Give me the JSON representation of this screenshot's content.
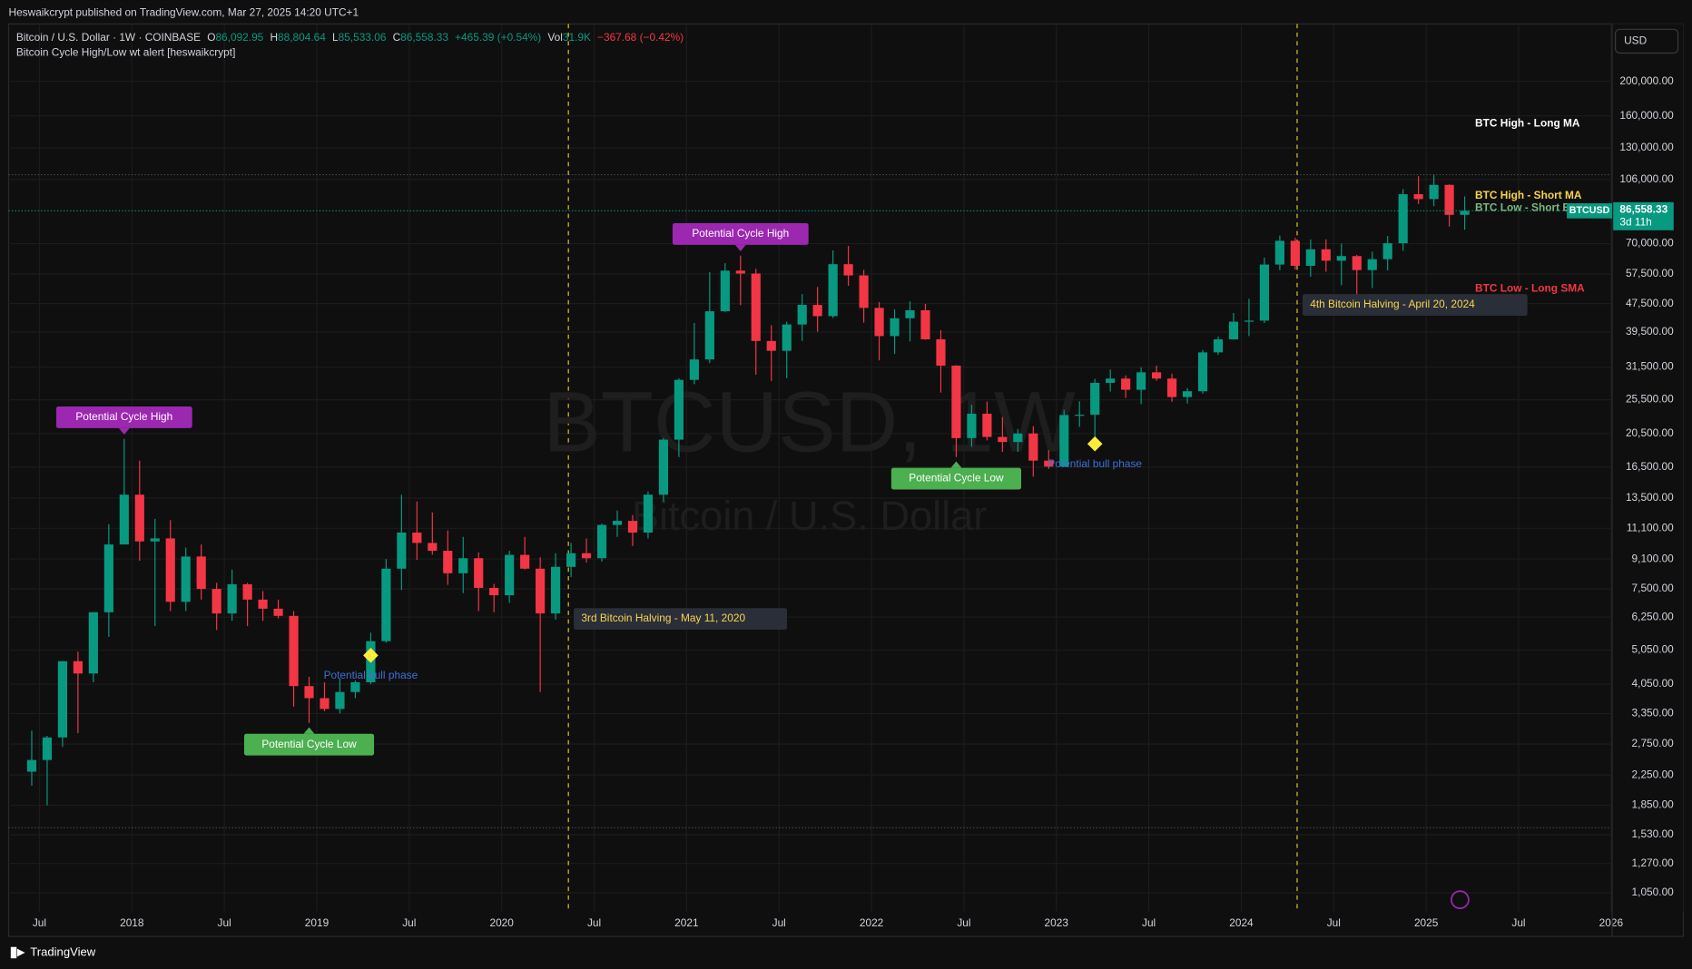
{
  "header": {
    "publisher": "Heswaikcrypt published on TradingView.com, Mar 27, 2025 14:20 UTC+1",
    "symbol": "Bitcoin / U.S. Dollar · 1W · COINBASE",
    "ohlc_labels": [
      "O",
      "H",
      "L",
      "C"
    ],
    "ohlc_values": [
      "86,092.95",
      "88,804.64",
      "85,533.06",
      "86,558.33"
    ],
    "change": "+465.39 (+0.54%)",
    "volume_label": "Vol",
    "volume": "31.9K",
    "volume_change": "−367.68 (−0.42%)",
    "indicator": "Bitcoin Cycle High/Low wt alert [heswaikcrypt]",
    "currency": "USD",
    "countdown": "3d 11h",
    "footer": "TradingView"
  },
  "chart_data": {
    "type": "candlestick",
    "watermark": "BTCUSD, 1W",
    "watermark_sub": "Bitcoin / U.S. Dollar",
    "log_scale": true,
    "grid": true,
    "up_color": "#089981",
    "down_color": "#f23645",
    "series": [
      {
        "name": "BTCUSD",
        "x": [
          "2017-06",
          "2017-07",
          "2017-08",
          "2017-09",
          "2017-10",
          "2017-11",
          "2017-12",
          "2018-01",
          "2018-02",
          "2018-03",
          "2018-04",
          "2018-05",
          "2018-06",
          "2018-07",
          "2018-08",
          "2018-09",
          "2018-10",
          "2018-11",
          "2018-12",
          "2019-01",
          "2019-02",
          "2019-03",
          "2019-04",
          "2019-05",
          "2019-06",
          "2019-07",
          "2019-08",
          "2019-09",
          "2019-10",
          "2019-11",
          "2019-12",
          "2020-01",
          "2020-02",
          "2020-03",
          "2020-04",
          "2020-05",
          "2020-06",
          "2020-07",
          "2020-08",
          "2020-09",
          "2020-10",
          "2020-11",
          "2020-12",
          "2021-01",
          "2021-02",
          "2021-03",
          "2021-04",
          "2021-05",
          "2021-06",
          "2021-07",
          "2021-08",
          "2021-09",
          "2021-10",
          "2021-11",
          "2021-12",
          "2022-01",
          "2022-02",
          "2022-03",
          "2022-04",
          "2022-05",
          "2022-06",
          "2022-07",
          "2022-08",
          "2022-09",
          "2022-10",
          "2022-11",
          "2022-12",
          "2023-01",
          "2023-02",
          "2023-03",
          "2023-04",
          "2023-05",
          "2023-06",
          "2023-07",
          "2023-08",
          "2023-09",
          "2023-10",
          "2023-11",
          "2023-12",
          "2024-01",
          "2024-02",
          "2024-03",
          "2024-04",
          "2024-05",
          "2024-06",
          "2024-07",
          "2024-08",
          "2024-09",
          "2024-10",
          "2024-11",
          "2024-12",
          "2025-01",
          "2025-02",
          "2025-03"
        ],
        "open": [
          2300,
          2480,
          2870,
          4700,
          4340,
          6450,
          10000,
          13800,
          10200,
          10400,
          6900,
          9250,
          7500,
          6400,
          7730,
          7000,
          6600,
          6300,
          4000,
          3700,
          3450,
          3850,
          4100,
          5350,
          8550,
          10800,
          10100,
          9600,
          8300,
          9150,
          7550,
          7200,
          9350,
          8550,
          6400,
          8650,
          9450,
          9150,
          11350,
          11650,
          10800,
          13800,
          19700,
          29000,
          33100,
          45200,
          58800,
          57700,
          37300,
          35000,
          41500,
          47100,
          43800,
          61300,
          57000,
          46200,
          38500,
          43200,
          45500,
          37700,
          31800,
          19900,
          23300,
          20050,
          19400,
          20500,
          17200,
          16550,
          23100,
          23150,
          28450,
          29250,
          27200,
          30450,
          29250,
          25950,
          26950,
          34650,
          37700,
          42250,
          42550,
          61150,
          71300,
          60650,
          67500,
          62700,
          64600,
          59000,
          63300,
          70200,
          96400,
          93400,
          102400,
          84350
        ],
        "high": [
          3000,
          2900,
          4700,
          5000,
          6450,
          11400,
          19800,
          17200,
          11800,
          11700,
          9800,
          10000,
          7800,
          8500,
          7800,
          7400,
          7000,
          6500,
          4250,
          4100,
          4200,
          4150,
          5650,
          9100,
          13800,
          13200,
          12300,
          10950,
          10500,
          9500,
          7750,
          9600,
          10500,
          9200,
          9450,
          10100,
          10400,
          11450,
          12450,
          12100,
          14100,
          19900,
          29300,
          41900,
          58300,
          61700,
          64800,
          59500,
          41300,
          42300,
          50500,
          52900,
          67000,
          69000,
          59100,
          48000,
          45800,
          48200,
          47400,
          40000,
          31900,
          24700,
          25200,
          22800,
          21100,
          21500,
          18400,
          23900,
          25250,
          29200,
          31000,
          29850,
          31450,
          31800,
          30200,
          27500,
          35200,
          38400,
          44700,
          49000,
          64000,
          73800,
          72700,
          71950,
          72000,
          70000,
          65100,
          66500,
          73600,
          99650,
          108350,
          109350,
          102750,
          95000
        ],
        "low": [
          2100,
          1850,
          2700,
          2950,
          4100,
          5500,
          10000,
          9000,
          5900,
          6500,
          6500,
          7000,
          5750,
          6100,
          5900,
          6100,
          6200,
          3500,
          3150,
          3400,
          3350,
          3700,
          4050,
          5300,
          7450,
          9050,
          9350,
          7700,
          7300,
          6500,
          6450,
          6850,
          8500,
          3850,
          6150,
          8100,
          8900,
          8950,
          10500,
          9900,
          10400,
          13200,
          17600,
          28200,
          32300,
          45000,
          47000,
          30000,
          28800,
          29300,
          37300,
          39600,
          43300,
          53300,
          42000,
          32900,
          34300,
          37200,
          37600,
          26700,
          17600,
          18800,
          19600,
          18200,
          18200,
          15500,
          16300,
          16500,
          21400,
          19550,
          26900,
          25800,
          24800,
          28850,
          25150,
          24900,
          26550,
          34100,
          37600,
          38500,
          41900,
          59000,
          59200,
          56500,
          58400,
          53500,
          49000,
          52550,
          58900,
          66800,
          90500,
          89200,
          78200,
          76600
        ],
        "close": [
          2480,
          2870,
          4700,
          4340,
          6450,
          10000,
          13800,
          10200,
          10400,
          6900,
          9250,
          7500,
          6400,
          7730,
          7000,
          6600,
          6300,
          4000,
          3700,
          3450,
          3850,
          4100,
          5350,
          8550,
          10800,
          10100,
          9600,
          8300,
          9150,
          7550,
          7200,
          9350,
          8550,
          6400,
          8650,
          9450,
          9150,
          11350,
          11650,
          10800,
          13800,
          19700,
          29000,
          33100,
          45200,
          58800,
          57700,
          37300,
          35000,
          41500,
          47100,
          43800,
          61300,
          57000,
          46200,
          38500,
          43200,
          45500,
          37700,
          31800,
          19900,
          23300,
          20050,
          19400,
          20500,
          17200,
          16550,
          23100,
          23150,
          28450,
          29250,
          27200,
          30450,
          29250,
          25950,
          26950,
          34650,
          37700,
          42250,
          42550,
          61150,
          71300,
          60650,
          67500,
          62700,
          64600,
          59000,
          63300,
          70200,
          96400,
          93400,
          102400,
          84350,
          86558.33
        ]
      }
    ],
    "last_price": {
      "value": 86558.33,
      "label": "86,558.33"
    },
    "hlines": [
      109350,
      1600
    ],
    "ylim": [
      930,
      290000
    ],
    "yticks": [
      {
        "value": 200000,
        "label": "200,000.00"
      },
      {
        "value": 160000,
        "label": "160,000.00"
      },
      {
        "value": 130000,
        "label": "130,000.00"
      },
      {
        "value": 106000,
        "label": "106,000.00"
      },
      {
        "value": 70000,
        "label": "70,000.00"
      },
      {
        "value": 57500,
        "label": "57,500.00"
      },
      {
        "value": 47500,
        "label": "47,500.00"
      },
      {
        "value": 39500,
        "label": "39,500.00"
      },
      {
        "value": 31500,
        "label": "31,500.00"
      },
      {
        "value": 25500,
        "label": "25,500.00"
      },
      {
        "value": 20500,
        "label": "20,500.00"
      },
      {
        "value": 16500,
        "label": "16,500.00"
      },
      {
        "value": 13500,
        "label": "13,500.00"
      },
      {
        "value": 11100,
        "label": "11,100.00"
      },
      {
        "value": 9100,
        "label": "9,100.00"
      },
      {
        "value": 7500,
        "label": "7,500.00"
      },
      {
        "value": 6250,
        "label": "6,250.00"
      },
      {
        "value": 5050,
        "label": "5,050.00"
      },
      {
        "value": 4050,
        "label": "4,050.00"
      },
      {
        "value": 3350,
        "label": "3,350.00"
      },
      {
        "value": 2750,
        "label": "2,750.00"
      },
      {
        "value": 2250,
        "label": "2,250.00"
      },
      {
        "value": 1850,
        "label": "1,850.00"
      },
      {
        "value": 1530,
        "label": "1,530.00"
      },
      {
        "value": 1270,
        "label": "1,270.00"
      },
      {
        "value": 1050,
        "label": "1,050.00"
      }
    ],
    "xlim": [
      "2017-05",
      "2026-01"
    ],
    "xticks": [
      {
        "value": "2017-07",
        "label": "Jul"
      },
      {
        "value": "2018-01",
        "label": "2018"
      },
      {
        "value": "2018-07",
        "label": "Jul"
      },
      {
        "value": "2019-01",
        "label": "2019"
      },
      {
        "value": "2019-07",
        "label": "Jul"
      },
      {
        "value": "2020-01",
        "label": "2020"
      },
      {
        "value": "2020-07",
        "label": "Jul"
      },
      {
        "value": "2021-01",
        "label": "2021"
      },
      {
        "value": "2021-07",
        "label": "Jul"
      },
      {
        "value": "2022-01",
        "label": "2022"
      },
      {
        "value": "2022-07",
        "label": "Jul"
      },
      {
        "value": "2023-01",
        "label": "2023"
      },
      {
        "value": "2023-07",
        "label": "Jul"
      },
      {
        "value": "2024-01",
        "label": "2024"
      },
      {
        "value": "2024-07",
        "label": "Jul"
      },
      {
        "value": "2025-01",
        "label": "2025"
      },
      {
        "value": "2025-07",
        "label": "Jul"
      },
      {
        "value": "2026-01",
        "label": "2026"
      }
    ],
    "annotations": [
      {
        "kind": "cycle-high",
        "text": "Potential Cycle High",
        "x": "2017-12",
        "y": 19800
      },
      {
        "kind": "cycle-high",
        "text": "Potential Cycle High",
        "x": "2021-04",
        "y": 64800
      },
      {
        "kind": "cycle-low",
        "text": "Potential Cycle Low",
        "x": "2018-12",
        "y": 3150
      },
      {
        "kind": "cycle-low",
        "text": "Potential Cycle Low",
        "x": "2022-06",
        "y": 17600
      },
      {
        "kind": "bull-phase",
        "text": "Potential bull phase",
        "x": "2019-04",
        "y": 4880
      },
      {
        "kind": "bull-phase",
        "text": "Potential bull phase",
        "x": "2023-03",
        "y": 19170
      },
      {
        "kind": "halving",
        "text": "3rd Bitcoin Halving - May 11, 2020",
        "x": "2020-05-11",
        "y": 6180
      },
      {
        "kind": "halving",
        "text": "4th Bitcoin Halving - April 20, 2024",
        "x": "2024-04-20",
        "y": 47100
      }
    ],
    "indicator_labels": [
      {
        "text": "BTC High - Long MA",
        "color": "#ffffff",
        "y": 152000
      },
      {
        "text": "BTC High - Short MA",
        "color": "#f7d44c",
        "y": 95500
      },
      {
        "text": "BTC Low - Short EMA",
        "color": "#7cb87f",
        "y": 88000
      },
      {
        "text": "BTC Low - Long SMA",
        "color": "#f23645",
        "y": 52300
      }
    ]
  }
}
